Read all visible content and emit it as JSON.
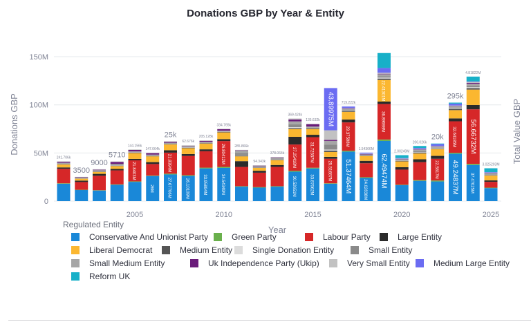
{
  "chart_data": {
    "type": "bar",
    "stacked": true,
    "title": "Donations GBP by Year & Entity",
    "xlabel": "Year",
    "ylabel": "Donations GBP",
    "y2label": "Total Value GBP",
    "ylim": [
      0,
      155000000
    ],
    "yticks": [
      {
        "v": 0,
        "label": "0"
      },
      {
        "v": 50,
        "label": "50M"
      },
      {
        "v": 100,
        "label": "100M"
      },
      {
        "v": 150,
        "label": "150M"
      }
    ],
    "xticks": [
      {
        "v": 2005,
        "label": "2005"
      },
      {
        "v": 2010,
        "label": "2010"
      },
      {
        "v": 2015,
        "label": "2015"
      },
      {
        "v": 2020,
        "label": "2020"
      },
      {
        "v": 2025,
        "label": "2025"
      }
    ],
    "grid": true,
    "legend_title": "Regulated Entity",
    "legend_position": "bottom",
    "unit": "M GBP",
    "categories": [
      2001,
      2002,
      2003,
      2004,
      2005,
      2006,
      2007,
      2008,
      2009,
      2010,
      2011,
      2012,
      2013,
      2014,
      2015,
      2016,
      2017,
      2018,
      2019,
      2020,
      2021,
      2022,
      2023,
      2024,
      2025
    ],
    "top_labels": [
      "241.706k",
      "3500",
      "9000",
      "5710",
      "144.156k",
      "147.064k",
      "25k",
      "62.676k",
      "205.128k",
      "334.765k",
      "285.866k",
      "94.343k",
      "378.064k",
      "369.424k",
      "135.632k",
      "",
      "719.222k",
      "1.54366M",
      "",
      "2.00249M",
      "206.026k",
      "20k",
      "295k",
      "4.81822M",
      "3.025203M"
    ],
    "series": [
      {
        "name": "Conservative And Unionist Party",
        "color": "#1a88d8",
        "values": [
          18,
          11.5,
          11,
          16.9,
          20,
          26,
          27.67706,
          26.10109,
          33.95894,
          34.54349,
          15,
          14,
          15,
          30.52651,
          33.87062,
          18,
          51.37464,
          24.02838,
          62.49474,
          16.5,
          21,
          20.4,
          49.24837,
          37.47025,
          13.5
        ]
      },
      {
        "name": "Green Party",
        "color": "#6ab04c",
        "values": [
          0.5,
          0.3,
          0.3,
          0.5,
          0.5,
          0.5,
          0.8,
          0.8,
          0.8,
          1,
          0.5,
          0.5,
          0.5,
          1,
          0.8,
          0.5,
          1,
          0.8,
          1.5,
          0.5,
          0.8,
          1,
          1,
          1.2,
          0.5
        ]
      },
      {
        "name": "Labour Party",
        "color": "#d62728",
        "values": [
          15,
          8,
          15,
          14.5,
          21.8403,
          12,
          21.8394,
          20,
          17,
          26.80412,
          20,
          15,
          20,
          27.25418,
          31.72557,
          25.51687,
          29.37598,
          14.5,
          36.89698,
          15.7,
          18.65,
          22.5817,
          32.64185,
          56.66732,
          6
        ]
      },
      {
        "name": "Large Entity",
        "color": "#2b2b2b",
        "values": [
          1.5,
          1.5,
          2,
          1.5,
          1.5,
          2,
          2.5,
          2,
          2,
          2,
          6,
          2,
          2,
          8,
          2.5,
          2,
          3,
          2.5,
          2.5,
          2.5,
          3,
          3,
          3,
          4.5,
          1.5
        ]
      },
      {
        "name": "Liberal Democrat",
        "color": "#fbb730",
        "values": [
          3,
          2,
          2,
          3,
          6,
          6,
          6,
          6,
          6,
          7,
          5,
          3,
          5,
          8,
          6,
          5,
          8,
          5,
          22.41301,
          6,
          6,
          7,
          8.6,
          16,
          5
        ]
      },
      {
        "name": "Medium Entity",
        "color": "#555555",
        "values": [
          0.5,
          0.3,
          0.5,
          0.5,
          0.5,
          0.5,
          0.5,
          0.5,
          0.5,
          0.5,
          1,
          0.5,
          0.5,
          1,
          1,
          1.5,
          1,
          0.5,
          1.5,
          0.5,
          1,
          0.5,
          1,
          1.5,
          0.5
        ]
      },
      {
        "name": "Single Donation Entity",
        "color": "#dcdcdc",
        "values": [
          0.3,
          0.2,
          0.3,
          0.3,
          0.3,
          0.3,
          0.3,
          0.3,
          0.3,
          0.3,
          0.5,
          0.3,
          0.3,
          1,
          0.5,
          1,
          0.5,
          0.3,
          1,
          0.3,
          0.5,
          0.5,
          0.5,
          1,
          0.3
        ]
      },
      {
        "name": "Small Entity",
        "color": "#8a8a8a",
        "values": [
          0.5,
          0.3,
          0.5,
          1,
          0.5,
          0.5,
          0.5,
          0.5,
          0.5,
          0.5,
          2,
          0.5,
          0.5,
          3,
          0.5,
          5,
          0.5,
          0.5,
          1.5,
          0.5,
          1,
          0.5,
          1,
          1.5,
          0.5
        ]
      },
      {
        "name": "Small Medium Entity",
        "color": "#a6a6a6",
        "values": [
          0.5,
          0.3,
          0.5,
          0.5,
          0.5,
          0.5,
          0.5,
          1,
          0.5,
          0.5,
          2.5,
          0.5,
          1,
          3,
          0.5,
          4,
          1,
          0.5,
          2,
          1,
          1.5,
          1,
          1.5,
          2,
          1
        ]
      },
      {
        "name": "Uk Independence Party (Ukip)",
        "color": "#6a1b7a",
        "values": [
          1,
          0.5,
          0.5,
          2,
          1.5,
          1.5,
          1,
          0.3,
          1,
          1.5,
          0.2,
          0.5,
          0.5,
          2,
          2.5,
          1,
          0.5,
          0.2,
          0.5,
          0.2,
          0.3,
          0.3,
          0.3,
          1,
          0.3
        ]
      },
      {
        "name": "Very Small Entity",
        "color": "#c2c2c2",
        "values": [
          0.5,
          0.3,
          0.5,
          0.5,
          0.5,
          0.5,
          0.5,
          0.5,
          0.5,
          0.5,
          0.5,
          0.5,
          0.5,
          1,
          0.5,
          10,
          0.5,
          0.5,
          1,
          0.5,
          0.5,
          0.5,
          0.5,
          1,
          0.5
        ]
      },
      {
        "name": "Medium Large Entity",
        "color": "#6b6cf2",
        "values": [
          0,
          0,
          0,
          0,
          0,
          0,
          0,
          0,
          0,
          0,
          0,
          0,
          0,
          0,
          0,
          43.89975,
          1.5,
          1,
          5,
          0.5,
          1,
          2,
          2,
          0.5,
          0.5
        ]
      },
      {
        "name": "Reform UK",
        "color": "#17b0c8",
        "values": [
          0,
          0,
          0,
          0,
          0,
          0,
          0,
          0,
          0,
          0,
          0,
          0,
          0,
          0,
          0,
          0,
          0,
          0,
          15.5,
          3,
          2,
          0.5,
          1,
          5,
          4
        ]
      }
    ]
  }
}
